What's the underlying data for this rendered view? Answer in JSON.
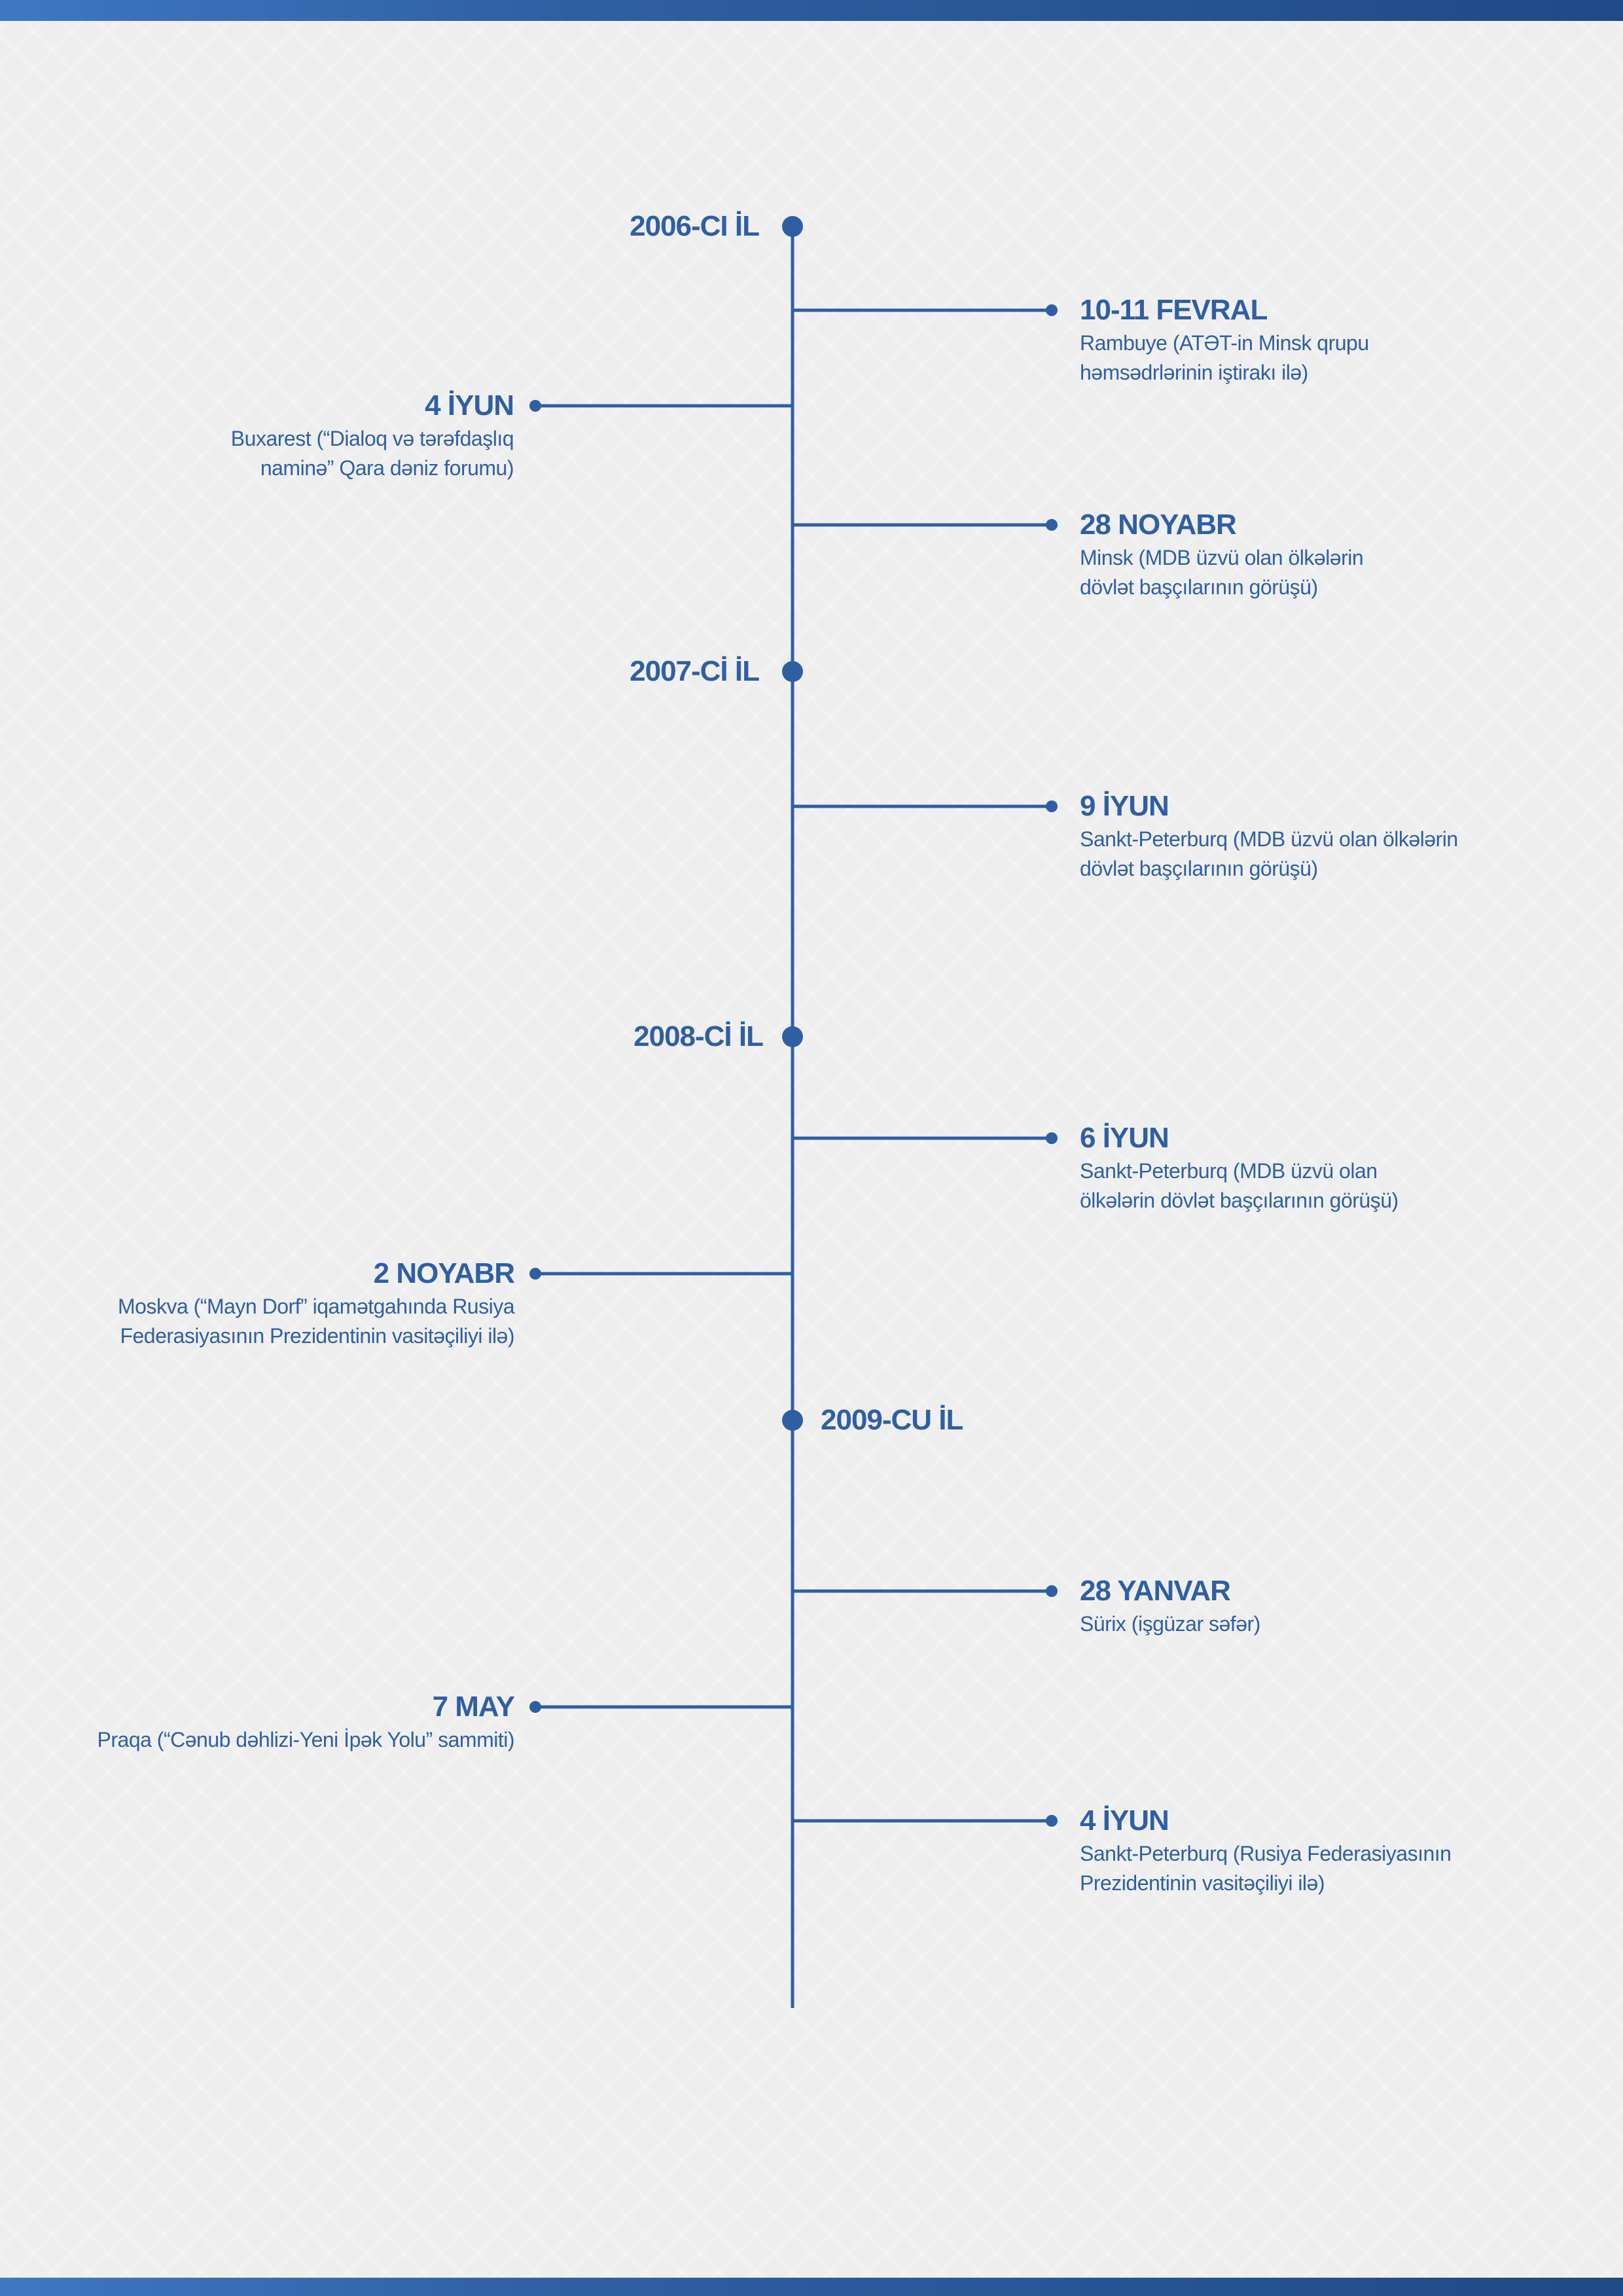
{
  "years": [
    {
      "label": "2006-CI İL"
    },
    {
      "label": "2007-Cİ İL"
    },
    {
      "label": "2008-Cİ İL"
    },
    {
      "label": "2009-CU İL"
    }
  ],
  "events": [
    {
      "date": "10-11 FEVRAL",
      "desc": "Rambuye (ATƏT-in Minsk qrupu həmsədrlərinin iştirakı ilə)",
      "side": "right"
    },
    {
      "date": "4 İYUN",
      "desc": "Buxarest (“Dialoq və tərəfdaşlıq naminə” Qara dəniz forumu)",
      "side": "left"
    },
    {
      "date": "28 NOYABR",
      "desc": "Minsk (MDB üzvü olan ölkələrin dövlət başçılarının görüşü)",
      "side": "right"
    },
    {
      "date": "9 İYUN",
      "desc": "Sankt-Peterburq (MDB üzvü olan ölkələrin dövlət başçılarının görüşü)",
      "side": "right"
    },
    {
      "date": "6 İYUN",
      "desc": "Sankt-Peterburq (MDB üzvü olan ölkələrin dövlət başçılarının görüşü)",
      "side": "right"
    },
    {
      "date": "2 NOYABR",
      "desc": "Moskva (“Mayn Dorf” iqamətgahında Rusiya Federasiyasının Prezidentinin vasitəçiliyi ilə)",
      "side": "left"
    },
    {
      "date": "28 YANVAR",
      "desc": "Sürix (işgüzar səfər)",
      "side": "right"
    },
    {
      "date": "7 MAY",
      "desc": "Praqa (“Cənub dəhlizi-Yeni İpək Yolu” sammiti)",
      "side": "left"
    },
    {
      "date": "4 İYUN",
      "desc": "Sankt-Peterburq (Rusiya Federasiyasının Prezidentinin vasitəçiliyi ilə)",
      "side": "right"
    }
  ],
  "colors": {
    "accent": "#2f5fa3",
    "background": "#eeeeee"
  }
}
